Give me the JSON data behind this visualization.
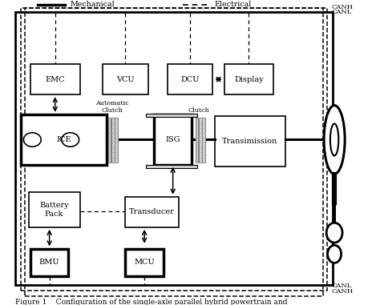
{
  "title": "Figure 1    Configuration of the single-axle parallel hybrid powertrain and",
  "legend_mechanical": "Mechanical",
  "legend_electrical": "Electrical",
  "bg_color": "#ffffff",
  "figure_size": [
    4.74,
    3.81
  ],
  "dpi": 100,
  "thick_boxes": [
    "ICE",
    "ISG",
    "BMU",
    "MCU"
  ]
}
